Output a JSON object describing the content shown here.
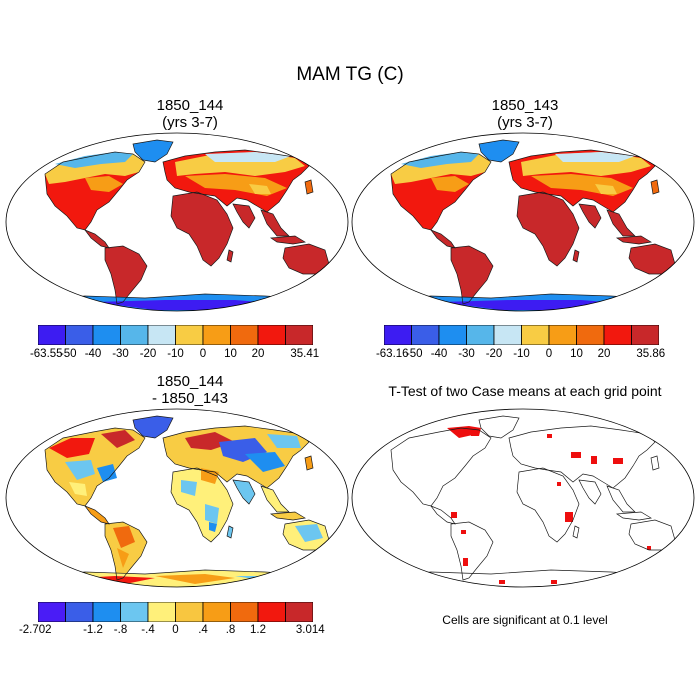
{
  "figure": {
    "title": "MAM TG (C)"
  },
  "panels": {
    "top_left": {
      "title_line1": "1850_144",
      "title_line2": "(yrs 3-7)"
    },
    "top_right": {
      "title_line1": "1850_143",
      "title_line2": "(yrs 3-7)"
    },
    "bottom_left": {
      "title_line1": "1850_144",
      "title_line2": "- 1850_143"
    },
    "bottom_right": {
      "title_line1": "T-Test of two Case means at each grid point",
      "note": "Cells are significant at 0.1 level"
    }
  },
  "colorbars": {
    "cb1": {
      "colors": [
        "#3d1cf2",
        "#3a5ee8",
        "#1e8ef0",
        "#56b6ea",
        "#c7e6f4",
        "#f8cc44",
        "#f79d16",
        "#f06a0e",
        "#f2180e",
        "#c8282a"
      ],
      "labels": [
        "-63.55",
        "-50",
        "-40",
        "-30",
        "-20",
        "-10",
        "0",
        "10",
        "20",
        "35.41"
      ]
    },
    "cb2": {
      "colors": [
        "#3d1cf2",
        "#3a5ee8",
        "#1e8ef0",
        "#56b6ea",
        "#c7e6f4",
        "#f8cc44",
        "#f79d16",
        "#f06a0e",
        "#f2180e",
        "#c8282a"
      ],
      "labels": [
        "-63.16",
        "-50",
        "-40",
        "-30",
        "-20",
        "-10",
        "0",
        "10",
        "20",
        "35.86"
      ]
    },
    "cb3": {
      "colors": [
        "#4a1cf6",
        "#3a5ee8",
        "#1e8ef0",
        "#6cc6f0",
        "#fff07a",
        "#f8c640",
        "#f79d16",
        "#f06a0e",
        "#f2180e",
        "#c8282a"
      ],
      "labels": [
        "-2.702",
        "-1.2",
        "-.8",
        "-.4",
        "0",
        ".4",
        ".8",
        "1.2",
        "3.014"
      ]
    }
  },
  "palette": {
    "ocean": "#ffffff",
    "land_warm": "#d02c2c",
    "land_orange": "#f07a10",
    "land_yellow": "#f8c844",
    "land_lightblue": "#9fd0ee",
    "land_blue": "#3a78e4",
    "antarctica_dark": "#3b24e6",
    "significant": "#ee0e0e"
  }
}
